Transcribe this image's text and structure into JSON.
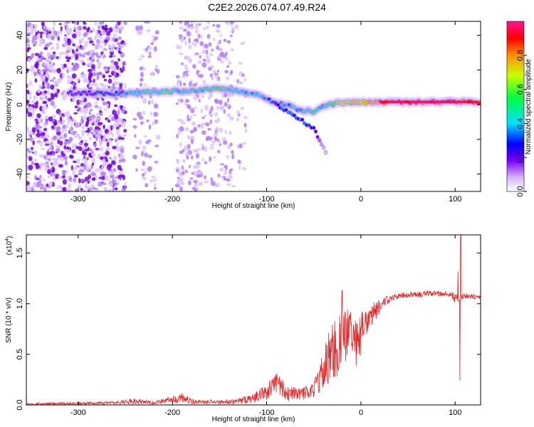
{
  "figure_title": "C2E2.2026.074.07.49.R24",
  "chart_data": [
    {
      "type": "heatmap",
      "title": "",
      "xlabel": "Height of straight line (km)",
      "ylabel": "Frequency (Hz)",
      "xlim": [
        -355,
        127
      ],
      "ylim": [
        -50,
        48
      ],
      "x_ticks": [
        -300,
        -200,
        -100,
        0,
        100
      ],
      "y_ticks": [
        -40,
        -20,
        0,
        20,
        40
      ],
      "colorbar": {
        "label": "Normalized spectral amplitude",
        "range": [
          0,
          1
        ],
        "ticks": [
          "0.0",
          "0.2",
          "0.4",
          "0.6",
          "0.8"
        ],
        "tick_values": [
          0,
          0.2,
          0.4,
          0.6,
          0.8
        ],
        "colors": [
          "#ffffff",
          "#d9b8ff",
          "#7a00ff",
          "#0000ff",
          "#00e0ff",
          "#00ff40",
          "#c8ff00",
          "#ff9000",
          "#ff0000",
          "#ff1493"
        ]
      },
      "main_trace": [
        {
          "x": -310,
          "f": 6.5,
          "a": 0.25
        },
        {
          "x": -290,
          "f": 6.8,
          "a": 0.3
        },
        {
          "x": -270,
          "f": 6.5,
          "a": 0.35
        },
        {
          "x": -250,
          "f": 6.5,
          "a": 0.45
        },
        {
          "x": -230,
          "f": 7.0,
          "a": 0.5
        },
        {
          "x": -210,
          "f": 7.5,
          "a": 0.55
        },
        {
          "x": -190,
          "f": 7.8,
          "a": 0.5
        },
        {
          "x": -170,
          "f": 8.5,
          "a": 0.5
        },
        {
          "x": -150,
          "f": 9.5,
          "a": 0.55
        },
        {
          "x": -130,
          "f": 8.0,
          "a": 0.5
        },
        {
          "x": -110,
          "f": 6.0,
          "a": 0.45
        },
        {
          "x": -95,
          "f": 2.0,
          "a": 0.4
        },
        {
          "x": -80,
          "f": 0.0,
          "a": 0.4
        },
        {
          "x": -65,
          "f": -3.0,
          "a": 0.45
        },
        {
          "x": -50,
          "f": -4.0,
          "a": 0.5
        },
        {
          "x": -40,
          "f": -1.0,
          "a": 0.45
        },
        {
          "x": -25,
          "f": 1.0,
          "a": 0.6
        },
        {
          "x": -10,
          "f": 1.2,
          "a": 0.7
        },
        {
          "x": 5,
          "f": 1.5,
          "a": 0.75
        },
        {
          "x": 25,
          "f": 1.5,
          "a": 0.9
        },
        {
          "x": 50,
          "f": 1.5,
          "a": 0.92
        },
        {
          "x": 75,
          "f": 1.5,
          "a": 0.95
        },
        {
          "x": 95,
          "f": 1.6,
          "a": 0.95
        },
        {
          "x": 115,
          "f": 1.6,
          "a": 0.9
        },
        {
          "x": 127,
          "f": 1.6,
          "a": 0.85
        }
      ],
      "secondary_branch": [
        {
          "x": -90,
          "f": 0.0,
          "a": 0.35
        },
        {
          "x": -75,
          "f": -5.0,
          "a": 0.4
        },
        {
          "x": -60,
          "f": -10.0,
          "a": 0.4
        },
        {
          "x": -50,
          "f": -14.0,
          "a": 0.3
        },
        {
          "x": -42,
          "f": -22.0,
          "a": 0.15
        },
        {
          "x": -35,
          "f": -30.0,
          "a": 0.08
        }
      ]
    },
    {
      "type": "line",
      "title": "",
      "xlabel": "Height of straight line (km)",
      "ylabel": "SNR (10 * v/v)",
      "y_scale_label": "(x10",
      "y_scale_exponent": "4",
      "y_scale_suffix": ")",
      "xlim": [
        -355,
        127
      ],
      "ylim": [
        0,
        1.68
      ],
      "x_ticks": [
        -300,
        -200,
        -100,
        0,
        100
      ],
      "y_ticks": [
        "0.0",
        "0.5",
        "1.0",
        "1.5"
      ],
      "y_tick_values": [
        0,
        0.5,
        1.0,
        1.5
      ],
      "color": "#ee2222",
      "envelope": [
        {
          "x": -355,
          "y": 0.01,
          "amp": 0.01
        },
        {
          "x": -260,
          "y": 0.02,
          "amp": 0.015
        },
        {
          "x": -240,
          "y": 0.04,
          "amp": 0.03
        },
        {
          "x": -220,
          "y": 0.02,
          "amp": 0.015
        },
        {
          "x": -190,
          "y": 0.07,
          "amp": 0.05
        },
        {
          "x": -175,
          "y": 0.03,
          "amp": 0.02
        },
        {
          "x": -140,
          "y": 0.03,
          "amp": 0.02
        },
        {
          "x": -120,
          "y": 0.05,
          "amp": 0.04
        },
        {
          "x": -100,
          "y": 0.12,
          "amp": 0.08
        },
        {
          "x": -90,
          "y": 0.22,
          "amp": 0.12
        },
        {
          "x": -80,
          "y": 0.12,
          "amp": 0.08
        },
        {
          "x": -65,
          "y": 0.1,
          "amp": 0.06
        },
        {
          "x": -50,
          "y": 0.15,
          "amp": 0.08
        },
        {
          "x": -35,
          "y": 0.45,
          "amp": 0.25
        },
        {
          "x": -25,
          "y": 0.6,
          "amp": 0.35
        },
        {
          "x": -15,
          "y": 0.7,
          "amp": 0.25
        },
        {
          "x": -5,
          "y": 0.62,
          "amp": 0.25
        },
        {
          "x": 10,
          "y": 0.88,
          "amp": 0.12
        },
        {
          "x": 25,
          "y": 1.02,
          "amp": 0.05
        },
        {
          "x": 40,
          "y": 1.08,
          "amp": 0.03
        },
        {
          "x": 70,
          "y": 1.1,
          "amp": 0.03
        },
        {
          "x": 95,
          "y": 1.1,
          "amp": 0.03
        },
        {
          "x": 100,
          "y": 1.05,
          "amp": 0.05
        },
        {
          "x": 110,
          "y": 1.08,
          "amp": 0.03
        },
        {
          "x": 127,
          "y": 1.06,
          "amp": 0.02
        }
      ],
      "spikes": [
        {
          "x": -20,
          "y": 1.13
        },
        {
          "x": 103,
          "y": 1.32
        },
        {
          "x": 105,
          "y": 0.24
        },
        {
          "x": 106,
          "y": 1.68
        }
      ]
    }
  ]
}
